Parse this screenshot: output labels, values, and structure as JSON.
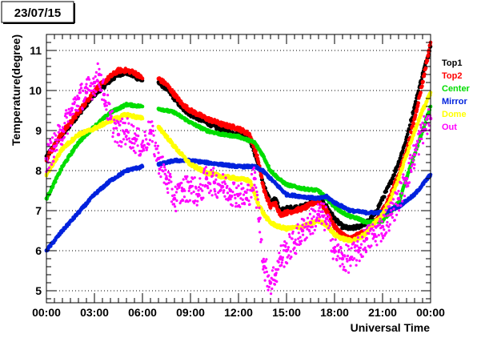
{
  "chart_data": {
    "type": "scatter",
    "title": "23/07/15",
    "xlabel": "Universal Time",
    "ylabel": "Temperature(degree)",
    "xlim": [
      0,
      24
    ],
    "ylim": [
      4.7,
      11.4
    ],
    "x_ticks": [
      0,
      3,
      6,
      9,
      12,
      15,
      18,
      21,
      24
    ],
    "x_tick_labels": [
      "00:00",
      "03:00",
      "06:00",
      "09:00",
      "12:00",
      "15:00",
      "18:00",
      "21:00",
      "00:00"
    ],
    "y_ticks": [
      5,
      6,
      7,
      8,
      9,
      10,
      11
    ],
    "y_tick_labels": [
      "5",
      "6",
      "7",
      "8",
      "9",
      "10",
      "11"
    ],
    "grid": "horizontal dotted",
    "legend_position": "right",
    "series": [
      {
        "name": "Top1",
        "color": "#000000",
        "x": [
          0,
          1,
          2,
          3,
          4,
          4.5,
          5,
          5.5,
          6,
          6.5,
          7,
          7.5,
          8,
          8.5,
          9,
          10,
          11,
          12,
          12.7,
          13.2,
          13.6,
          14,
          14.3,
          14.6,
          15,
          16,
          17,
          17.5,
          18,
          18.5,
          19,
          19.5,
          20,
          20.5,
          21,
          21.5,
          22,
          22.5,
          23,
          23.5,
          24
        ],
        "y": [
          8.35,
          8.9,
          9.4,
          9.9,
          10.25,
          10.4,
          10.45,
          10.35,
          10.25,
          null,
          10.2,
          10.05,
          9.8,
          9.55,
          9.4,
          9.2,
          9.0,
          8.9,
          8.8,
          8.2,
          7.6,
          7.2,
          7.3,
          7.0,
          7.05,
          7.1,
          7.3,
          7.1,
          6.8,
          6.6,
          6.55,
          6.6,
          6.7,
          6.9,
          7.3,
          7.7,
          8.2,
          8.8,
          9.6,
          10.4,
          11.1
        ]
      },
      {
        "name": "Top2",
        "color": "#ff0000",
        "x": [
          0,
          1,
          2,
          3,
          4,
          4.5,
          5,
          5.5,
          6,
          6.5,
          7,
          7.5,
          8,
          8.5,
          9,
          10,
          11,
          12,
          12.7,
          13.2,
          13.6,
          14,
          14.3,
          14.6,
          15,
          16,
          17,
          17.5,
          18,
          18.5,
          19,
          19.5,
          20,
          20.5,
          21,
          21.5,
          22,
          22.5,
          23,
          23.5,
          24
        ],
        "y": [
          8.3,
          8.95,
          9.45,
          10.0,
          10.35,
          10.5,
          10.5,
          10.45,
          10.3,
          null,
          10.3,
          10.15,
          9.9,
          9.65,
          9.5,
          9.3,
          9.15,
          9.05,
          8.9,
          8.3,
          7.5,
          7.1,
          7.2,
          6.9,
          6.95,
          7.05,
          7.25,
          7.0,
          6.6,
          6.4,
          6.3,
          6.4,
          6.5,
          6.7,
          7.0,
          7.4,
          7.9,
          8.5,
          9.3,
          10.2,
          11.2
        ]
      },
      {
        "name": "Center",
        "color": "#00dd00",
        "x": [
          0,
          1,
          2,
          3,
          4,
          5,
          6,
          6.5,
          7,
          8,
          9,
          10,
          11,
          12,
          13,
          13.5,
          14,
          14.5,
          15,
          16,
          17,
          17.5,
          18,
          18.5,
          19,
          19.5,
          20,
          21,
          22,
          22.5,
          23,
          23.5,
          24
        ],
        "y": [
          7.3,
          8.1,
          8.7,
          9.1,
          9.45,
          9.65,
          9.6,
          null,
          9.55,
          9.45,
          9.2,
          9.0,
          8.9,
          8.85,
          8.7,
          8.4,
          8.0,
          7.8,
          7.65,
          7.55,
          7.5,
          7.3,
          7.1,
          6.95,
          6.85,
          6.8,
          6.7,
          6.75,
          7.2,
          7.8,
          8.4,
          9.0,
          9.6
        ]
      },
      {
        "name": "Mirror",
        "color": "#0022dd",
        "x": [
          0,
          1,
          2,
          3,
          4,
          5,
          6,
          6.5,
          7,
          8,
          9,
          10,
          11,
          12,
          13,
          13.5,
          14,
          14.5,
          15,
          16,
          17,
          17.5,
          18,
          19,
          20,
          21,
          22,
          23,
          24
        ],
        "y": [
          6.0,
          6.5,
          6.95,
          7.4,
          7.75,
          8.0,
          8.1,
          null,
          8.15,
          8.25,
          8.25,
          8.2,
          8.15,
          8.1,
          8.1,
          8.0,
          7.8,
          7.6,
          7.4,
          7.35,
          7.3,
          7.35,
          7.2,
          7.0,
          6.95,
          6.95,
          7.1,
          7.4,
          7.9
        ]
      },
      {
        "name": "Dome",
        "color": "#ffff00",
        "x": [
          0,
          1,
          2,
          3,
          4,
          5,
          6,
          6.5,
          7,
          8,
          9,
          10,
          11,
          12,
          12.7,
          13.2,
          13.6,
          14,
          14.5,
          15,
          16,
          17,
          17.5,
          18,
          18.5,
          19,
          19.5,
          20,
          20.5,
          21,
          21.5,
          22,
          22.5,
          23,
          23.5,
          24
        ],
        "y": [
          7.9,
          8.55,
          8.9,
          9.05,
          9.25,
          9.4,
          9.3,
          null,
          9.1,
          8.6,
          8.15,
          7.95,
          7.85,
          7.8,
          7.75,
          7.2,
          6.9,
          6.7,
          6.6,
          6.55,
          6.6,
          6.75,
          6.65,
          6.4,
          6.3,
          6.25,
          6.3,
          6.45,
          6.7,
          6.9,
          7.3,
          7.8,
          8.4,
          9.0,
          9.5,
          9.95
        ]
      },
      {
        "name": "Out",
        "color": "#ff00ff",
        "x": [
          0,
          0.5,
          1,
          1.5,
          2,
          2.5,
          3,
          3.3,
          3.6,
          4,
          4.5,
          5,
          5.5,
          6,
          6.5,
          7,
          7.5,
          8,
          8.5,
          9,
          9.5,
          10,
          10.5,
          11,
          11.5,
          12,
          12.5,
          13,
          13.3,
          13.6,
          14,
          14.3,
          14.6,
          15,
          15.5,
          16,
          16.5,
          17,
          17.5,
          18,
          18.5,
          19,
          19.5,
          20,
          20.5,
          21,
          21.5,
          22,
          22.5,
          23,
          23.5,
          24
        ],
        "y": [
          8.3,
          8.6,
          9.0,
          9.4,
          9.8,
          9.95,
          10.2,
          10.4,
          9.9,
          9.3,
          8.9,
          9.0,
          8.8,
          8.6,
          9.0,
          8.3,
          7.8,
          7.3,
          7.5,
          7.6,
          7.4,
          7.8,
          7.7,
          7.6,
          7.5,
          7.4,
          7.3,
          7.8,
          6.8,
          5.6,
          5.2,
          5.4,
          5.8,
          6.0,
          6.2,
          6.5,
          6.7,
          6.9,
          6.8,
          6.0,
          5.8,
          5.8,
          6.0,
          6.3,
          6.4,
          6.6,
          6.9,
          7.3,
          7.8,
          8.4,
          9.0,
          9.3
        ]
      }
    ]
  }
}
